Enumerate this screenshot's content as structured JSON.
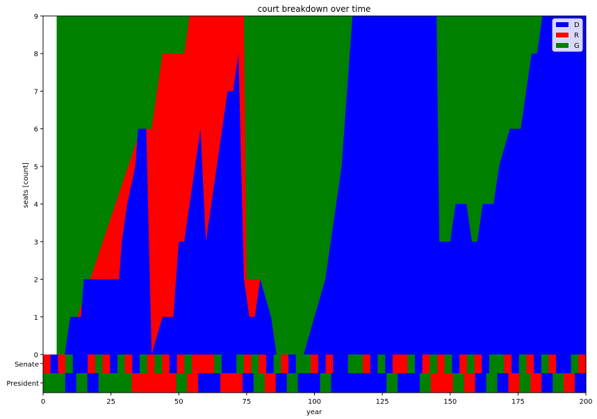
{
  "chart_data": {
    "type": "area",
    "title": "court breakdown over time",
    "xlabel": "year",
    "ylabel": "seats [count]",
    "xlim": [
      0,
      200
    ],
    "ylim": [
      0,
      9
    ],
    "xticks": [
      0,
      25,
      50,
      75,
      100,
      125,
      150,
      175,
      200
    ],
    "yticks": [
      0,
      1,
      2,
      3,
      4,
      5,
      6,
      7,
      8,
      9
    ],
    "legend_position": "top-right",
    "colors": {
      "D": "#0000ff",
      "R": "#ff0000",
      "G": "#008000"
    },
    "series": [
      {
        "name": "D",
        "color": "#0000ff",
        "points": [
          [
            0,
            0
          ],
          [
            4,
            0
          ],
          [
            8,
            0
          ],
          [
            10,
            1
          ],
          [
            14,
            1
          ],
          [
            15,
            2
          ],
          [
            20,
            2
          ],
          [
            24,
            2
          ],
          [
            28,
            2
          ],
          [
            29,
            3
          ],
          [
            31,
            4
          ],
          [
            34,
            5
          ],
          [
            35,
            6
          ],
          [
            38,
            6
          ],
          [
            40,
            0
          ],
          [
            44,
            1
          ],
          [
            48,
            1
          ],
          [
            50,
            3
          ],
          [
            52,
            3
          ],
          [
            54,
            4
          ],
          [
            56,
            5
          ],
          [
            58,
            6
          ],
          [
            60,
            3
          ],
          [
            62,
            4
          ],
          [
            64,
            5
          ],
          [
            66,
            6
          ],
          [
            68,
            7
          ],
          [
            70,
            7
          ],
          [
            72,
            8
          ],
          [
            74,
            2
          ],
          [
            76,
            1
          ],
          [
            78,
            1
          ],
          [
            80,
            2
          ],
          [
            84,
            1
          ],
          [
            86,
            0
          ],
          [
            96,
            0
          ],
          [
            100,
            1
          ],
          [
            104,
            2
          ],
          [
            106,
            3
          ],
          [
            108,
            4
          ],
          [
            110,
            5
          ],
          [
            112,
            7
          ],
          [
            114,
            9
          ],
          [
            118,
            9
          ],
          [
            122,
            9
          ],
          [
            126,
            9
          ],
          [
            130,
            9
          ],
          [
            134,
            9
          ],
          [
            138,
            9
          ],
          [
            142,
            9
          ],
          [
            145,
            9
          ],
          [
            146,
            3
          ],
          [
            150,
            3
          ],
          [
            152,
            4
          ],
          [
            156,
            4
          ],
          [
            158,
            3
          ],
          [
            160,
            3
          ],
          [
            162,
            4
          ],
          [
            166,
            4
          ],
          [
            168,
            5
          ],
          [
            172,
            6
          ],
          [
            176,
            6
          ],
          [
            178,
            7
          ],
          [
            180,
            8
          ],
          [
            182,
            8
          ],
          [
            184,
            9
          ],
          [
            188,
            9
          ],
          [
            192,
            9
          ],
          [
            196,
            9
          ],
          [
            200,
            9
          ]
        ]
      },
      {
        "name": "R",
        "color": "#ff0000",
        "points": [
          [
            0,
            0
          ],
          [
            8,
            0
          ],
          [
            36,
            6
          ],
          [
            38,
            6
          ],
          [
            40,
            6
          ],
          [
            42,
            7
          ],
          [
            44,
            8
          ],
          [
            48,
            8
          ],
          [
            52,
            8
          ],
          [
            54,
            9
          ],
          [
            56,
            9
          ],
          [
            58,
            9
          ],
          [
            60,
            9
          ],
          [
            66,
            9
          ],
          [
            70,
            9
          ],
          [
            74,
            9
          ],
          [
            75,
            2
          ],
          [
            80,
            2
          ],
          [
            80,
            0
          ],
          [
            200,
            0
          ]
        ]
      },
      {
        "name": "G",
        "color": "#008000",
        "points": [
          [
            5,
            9
          ],
          [
            55,
            9
          ],
          [
            75,
            9
          ],
          [
            80,
            9
          ],
          [
            105,
            9
          ],
          [
            114,
            9
          ],
          [
            145,
            9
          ],
          [
            182,
            9
          ]
        ]
      }
    ],
    "strips": [
      {
        "label": "Senate",
        "colors": [
          "R",
          "D",
          "R",
          "G",
          "D",
          "D",
          "R",
          "G",
          "R",
          "D",
          "G",
          "R",
          "D",
          "G",
          "R",
          "G",
          "R",
          "D",
          "R",
          "G",
          "R",
          "R",
          "R",
          "G",
          "D",
          "D",
          "G",
          "R",
          "G",
          "R",
          "D",
          "G",
          "R",
          "D",
          "G",
          "G",
          "R",
          "D",
          "R",
          "D",
          "D",
          "G",
          "G",
          "R",
          "D",
          "G",
          "D",
          "R",
          "R",
          "G",
          "D",
          "R",
          "G",
          "R",
          "G",
          "D",
          "R",
          "G",
          "R",
          "D",
          "G",
          "G",
          "R",
          "D",
          "G",
          "R",
          "D",
          "G",
          "R",
          "D",
          "D",
          "G",
          "R"
        ]
      },
      {
        "label": "President",
        "colors": [
          "G",
          "G",
          "D",
          "G",
          "D",
          "G",
          "G",
          "G",
          "R",
          "R",
          "R",
          "R",
          "G",
          "R",
          "D",
          "D",
          "R",
          "R",
          "D",
          "G",
          "R",
          "D",
          "G",
          "D",
          "D",
          "G",
          "D",
          "D",
          "D",
          "D",
          "D",
          "G",
          "D",
          "D",
          "G",
          "R",
          "R",
          "G",
          "R",
          "D",
          "G",
          "D",
          "R",
          "G",
          "R",
          "D",
          "G",
          "R",
          "D"
        ]
      }
    ]
  }
}
